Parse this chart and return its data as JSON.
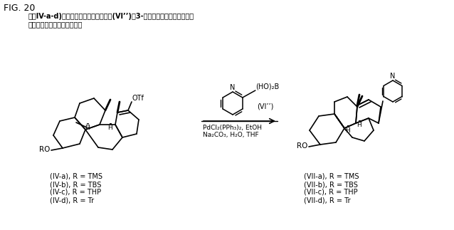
{
  "fig_label": "FIG. 20",
  "title_line1": "式（IV-a-d)のビニルトリフレートの式(VI’’)の3-ピリジルボロン酸との鈴木",
  "title_line2": "カップリングの合成スキーム",
  "condition_line1": "PdCl₂(PPh₃)₂, EtOH",
  "condition_line2": "Na₂CO₃, H₂O, THF",
  "left_labels": [
    "(IV-a), R = TMS",
    "(IV-b), R = TBS",
    "(IV-c), R = THP",
    "(IV-d), R = Tr"
  ],
  "right_labels": [
    "(VII-a), R = TMS",
    "(VII-b), R = TBS",
    "(VII-c), R = THP",
    "(VII-d), R = Tr"
  ],
  "bg_color": "#ffffff",
  "text_color": "#000000"
}
